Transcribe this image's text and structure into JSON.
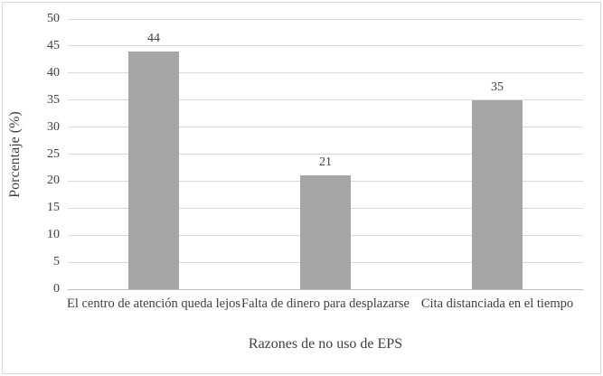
{
  "figure": {
    "background_color": "#ffffff",
    "border_color": "#d9d9d9"
  },
  "chart_data": {
    "type": "bar",
    "title": "",
    "categories": [
      "El centro de atención queda lejos",
      "Falta de dinero para desplazarse",
      "Cita distanciada en el tiempo"
    ],
    "values": [
      44,
      21,
      35
    ],
    "data_labels": [
      "44",
      "21",
      "35"
    ],
    "xlabel": "Razones de no uso de EPS",
    "ylabel": "Porcentaje (%)",
    "ylim": [
      0,
      50
    ],
    "yticks": [
      0,
      5,
      10,
      15,
      20,
      25,
      30,
      35,
      40,
      45,
      50
    ],
    "grid": true,
    "legend_position": "none",
    "bar_color": "#a6a6a6",
    "gridline_color": "#d9d9d9",
    "axis_line_color": "#bfbfbf",
    "text_color": "#404040"
  }
}
